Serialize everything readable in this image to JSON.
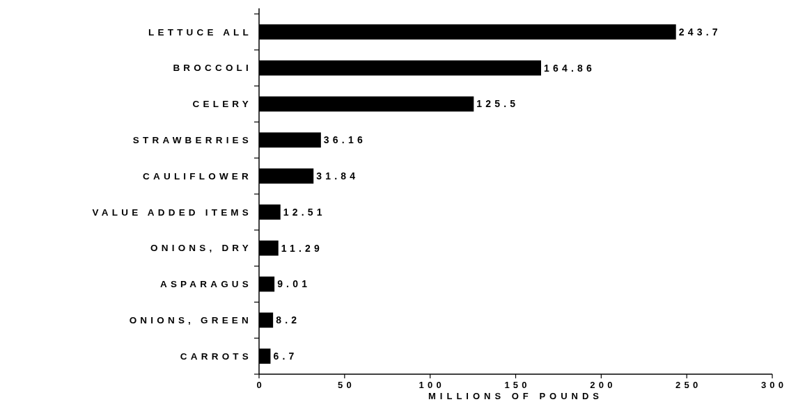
{
  "chart_data": {
    "type": "bar",
    "orientation": "horizontal",
    "xlabel": "MILLIONS OF POUNDS",
    "categories": [
      "LETTUCE ALL",
      "BROCCOLI",
      "CELERY",
      "STRAWBERRIES",
      "CAULIFLOWER",
      "VALUE ADDED ITEMS",
      "ONIONS, DRY",
      "ASPARAGUS",
      "ONIONS, GREEN",
      "CARROTS"
    ],
    "values": [
      243.7,
      164.86,
      125.5,
      36.16,
      31.84,
      12.51,
      11.29,
      9.01,
      8.2,
      6.7
    ],
    "color": "#000000",
    "xlim": [
      0,
      300
    ],
    "xticks": [
      0,
      50,
      100,
      150,
      200,
      250,
      300
    ],
    "grid": false,
    "data_labels": true
  }
}
